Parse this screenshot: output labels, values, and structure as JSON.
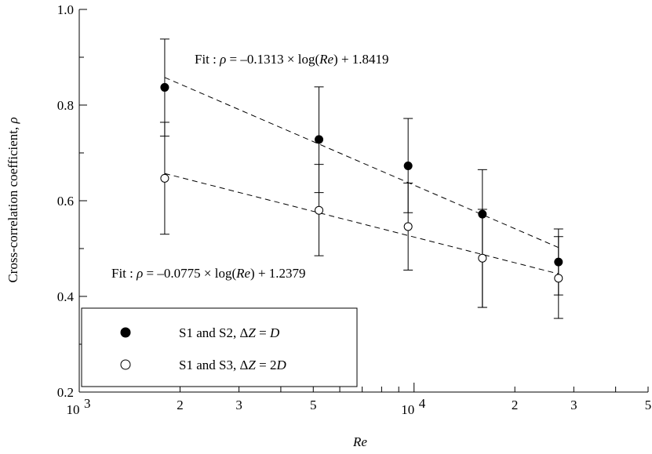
{
  "chart_data": {
    "type": "scatter",
    "xscale": "log",
    "xlim": [
      1000,
      50000
    ],
    "ylim": [
      0.2,
      1.0
    ],
    "xlabel": "Re",
    "ylabel": "Cross-correlation coefficient, ρ",
    "x_major_ticks": [
      {
        "value": 1000,
        "base": "10",
        "exp": "3"
      },
      {
        "value": 10000,
        "base": "10",
        "exp": "4"
      }
    ],
    "x_minor_labels": [
      {
        "value": 2000,
        "label": "2"
      },
      {
        "value": 3000,
        "label": "3"
      },
      {
        "value": 5000,
        "label": "5"
      },
      {
        "value": 20000,
        "label": "2"
      },
      {
        "value": 30000,
        "label": "3"
      },
      {
        "value": 50000,
        "label": "5"
      }
    ],
    "y_ticks": [
      {
        "value": 0.2,
        "label": "0.2"
      },
      {
        "value": 0.4,
        "label": "0.4"
      },
      {
        "value": 0.6,
        "label": "0.6"
      },
      {
        "value": 0.8,
        "label": "0.8"
      },
      {
        "value": 1.0,
        "label": "1.0"
      }
    ],
    "series": [
      {
        "name": "S1 and S2, ΔZ = D",
        "marker": "filled-circle",
        "x": [
          1800,
          5200,
          9600,
          16000,
          27000
        ],
        "y": [
          0.837,
          0.728,
          0.673,
          0.572,
          0.472
        ],
        "err_low": [
          0.735,
          0.617,
          0.575,
          0.377,
          0.403
        ],
        "err_high": [
          0.938,
          0.838,
          0.772,
          0.665,
          0.541
        ],
        "fit": {
          "label": "Fit : ρ = –0.1313 × log(Re) + 1.8419",
          "slope": -0.1313,
          "intercept": 1.8419,
          "x_range": [
            1800,
            27000
          ]
        }
      },
      {
        "name": "S1 and S3, ΔZ = 2D",
        "marker": "open-circle",
        "x": [
          1800,
          5200,
          9600,
          16000,
          27000
        ],
        "y": [
          0.647,
          0.58,
          0.546,
          0.48,
          0.438
        ],
        "err_low": [
          0.53,
          0.485,
          0.455,
          0.377,
          0.354
        ],
        "err_high": [
          0.764,
          0.676,
          0.637,
          0.582,
          0.525
        ],
        "fit": {
          "label": "Fit : ρ = –0.0775 × log(Re) + 1.2379",
          "slope": -0.0775,
          "intercept": 1.2379,
          "x_range": [
            1800,
            27000
          ]
        }
      }
    ],
    "legend": {
      "placement": "bottom-left",
      "entries": [
        {
          "prefix": "S1 and S2,",
          "dz": "ΔZ",
          "value": "D"
        },
        {
          "prefix": "S1 and S3,",
          "dz": "ΔZ",
          "value": "2D"
        }
      ]
    }
  }
}
